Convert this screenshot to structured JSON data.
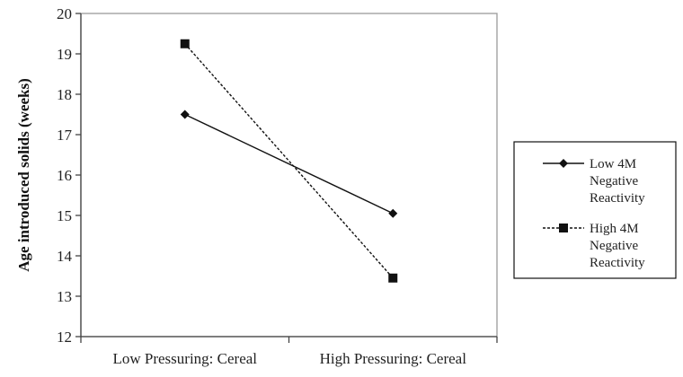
{
  "chart_data": {
    "type": "line",
    "title": "",
    "xlabel": "",
    "ylabel": "Age introduced solids (weeks)",
    "categories": [
      "Low Pressuring: Cereal",
      "High Pressuring: Cereal"
    ],
    "ylim": [
      12,
      20
    ],
    "yticks": [
      12,
      13,
      14,
      15,
      16,
      17,
      18,
      19,
      20
    ],
    "grid": false,
    "legend_position": "right",
    "series": [
      {
        "name": "Low 4M Negative Reactivity",
        "name_lines": [
          "Low 4M",
          "Negative",
          "Reactivity"
        ],
        "values": [
          17.5,
          15.05
        ],
        "marker": "diamond",
        "line_style": "solid",
        "color": "#111111"
      },
      {
        "name": "High 4M Negative Reactivity",
        "name_lines": [
          "High 4M",
          "Negative",
          "Reactivity"
        ],
        "values": [
          19.25,
          13.45
        ],
        "marker": "square",
        "line_style": "dashed",
        "color": "#111111"
      }
    ]
  }
}
